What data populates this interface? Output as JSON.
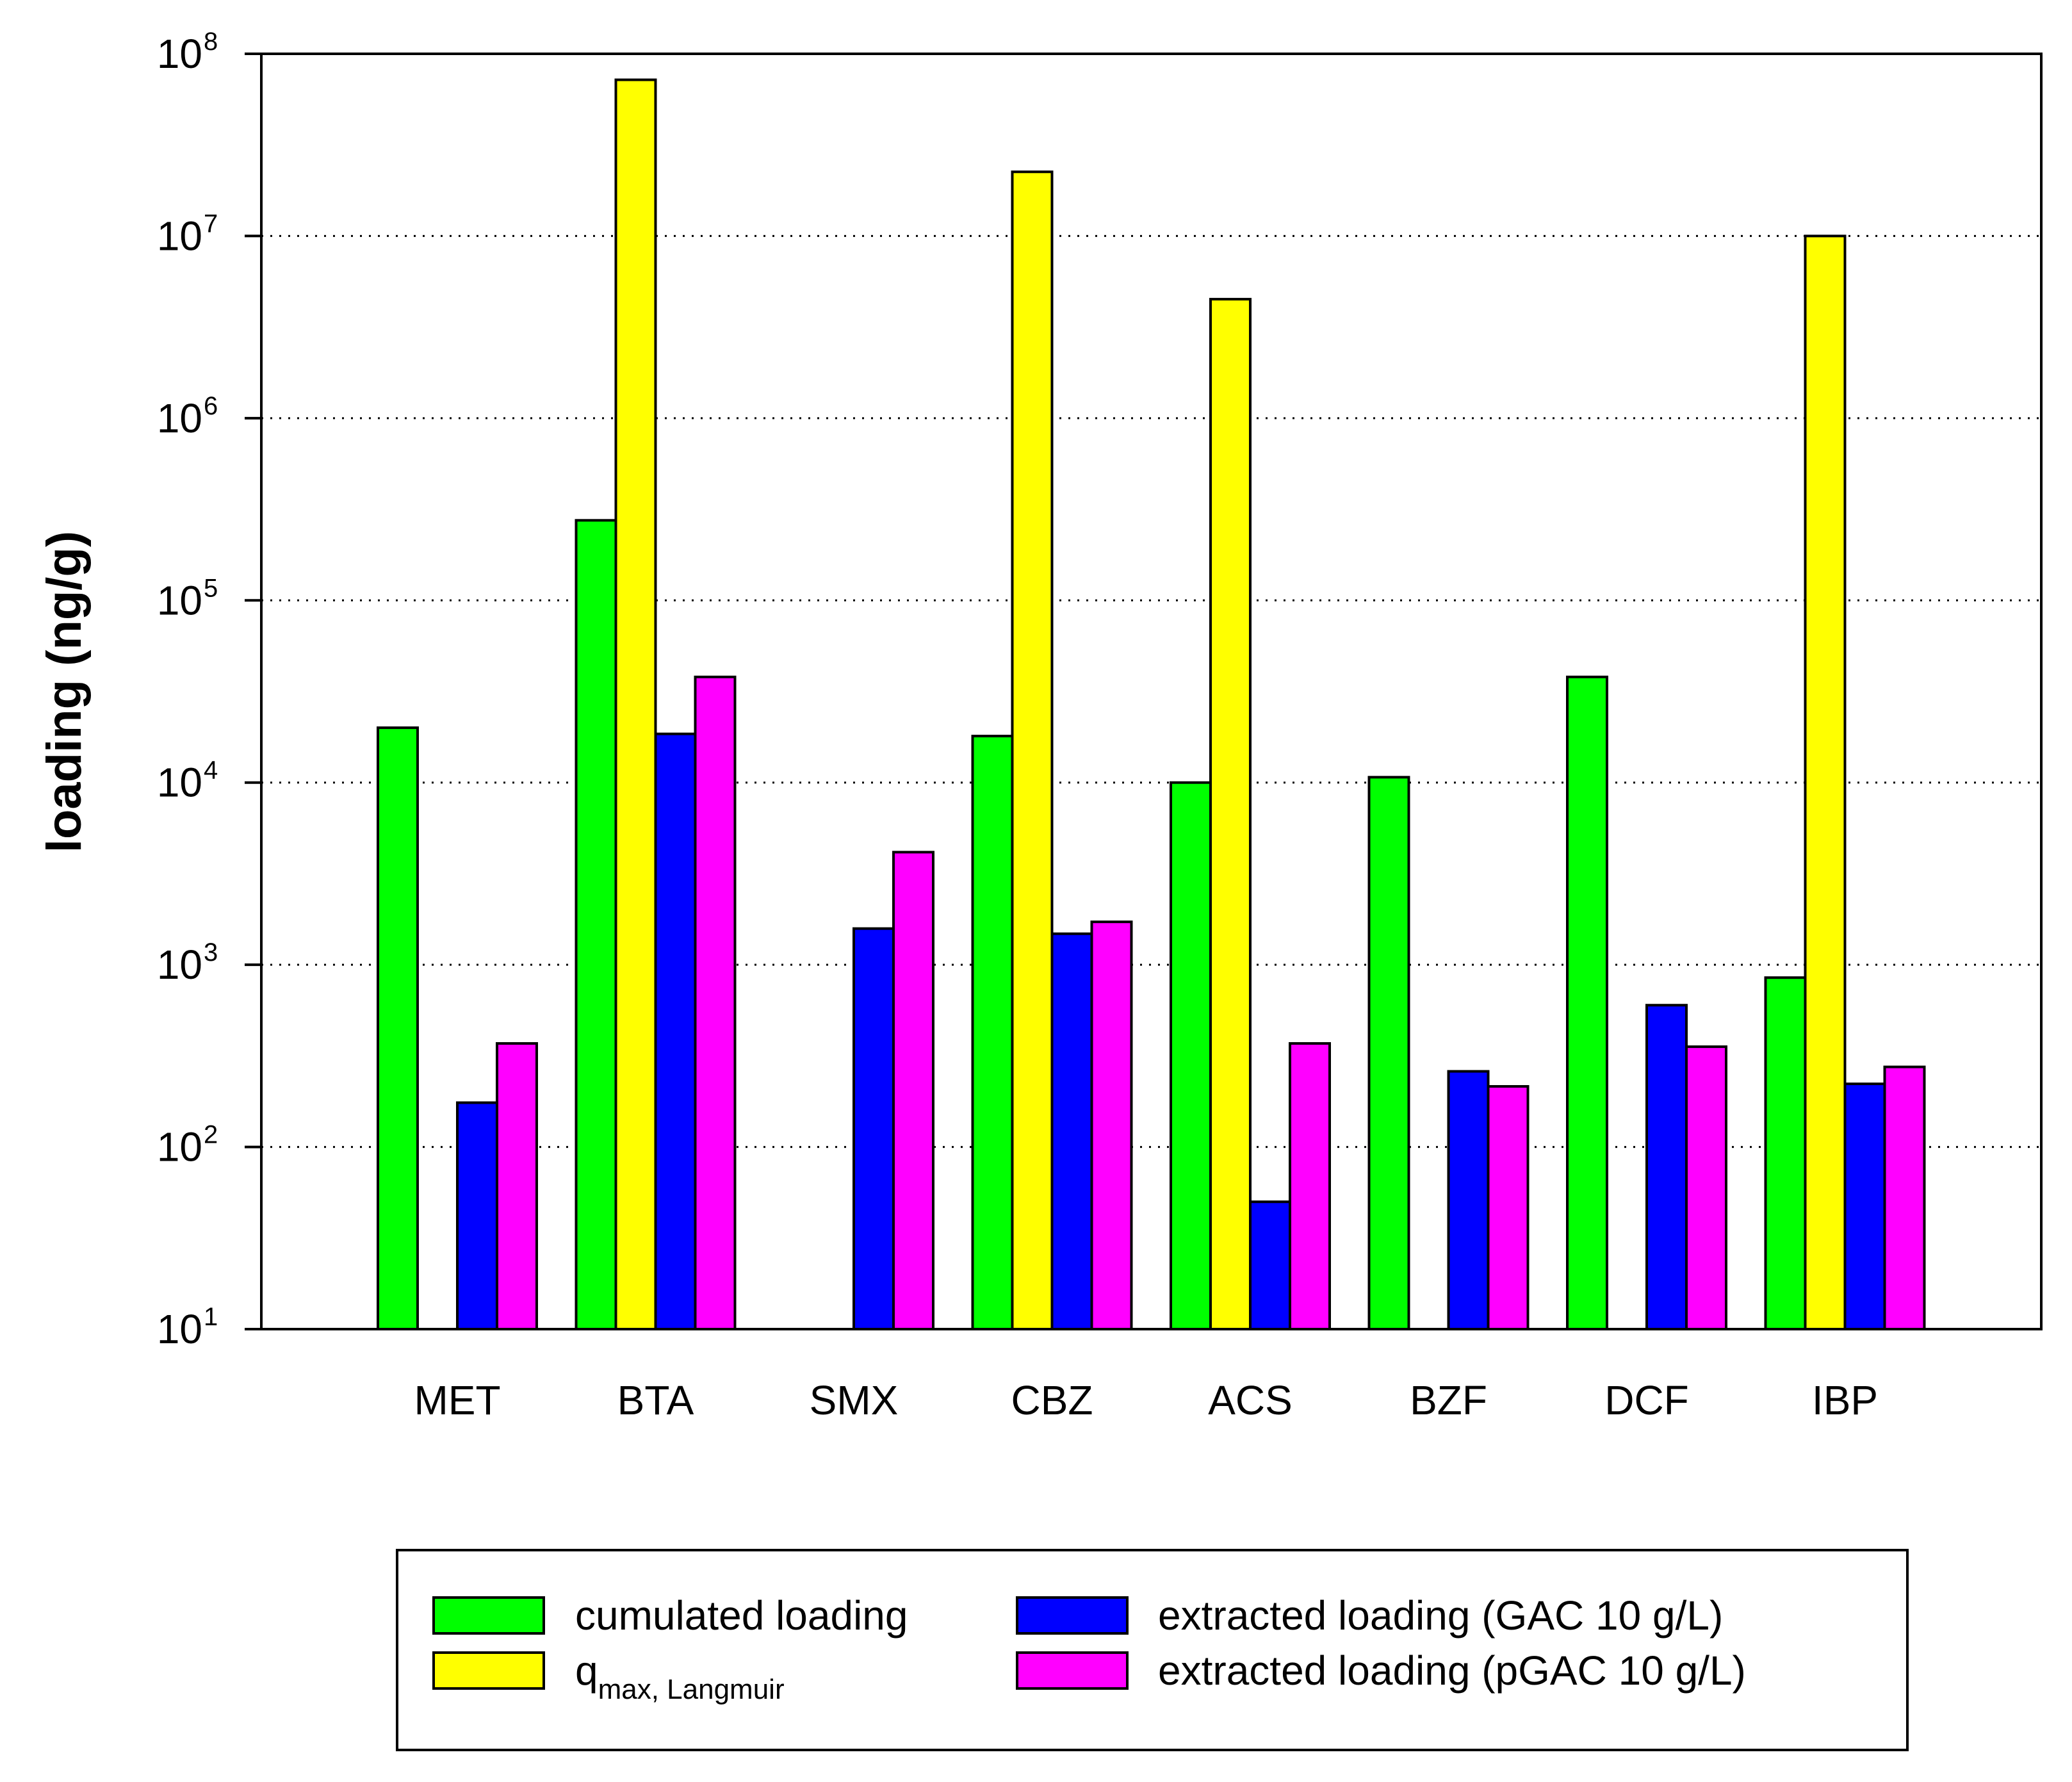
{
  "chart_data": {
    "type": "bar",
    "title": "",
    "xlabel": "",
    "ylabel": "loading (ng/g)",
    "yscale": "log",
    "ylim": [
      10,
      100000000
    ],
    "grid": "horizontal dotted",
    "legend_position": "bottom",
    "y_ticks": [
      {
        "base": "10",
        "exp": "1"
      },
      {
        "base": "10",
        "exp": "2"
      },
      {
        "base": "10",
        "exp": "3"
      },
      {
        "base": "10",
        "exp": "4"
      },
      {
        "base": "10",
        "exp": "5"
      },
      {
        "base": "10",
        "exp": "6"
      },
      {
        "base": "10",
        "exp": "7"
      },
      {
        "base": "10",
        "exp": "8"
      }
    ],
    "categories": [
      "MET",
      "BTA",
      "SMX",
      "CBZ",
      "ACS",
      "BZF",
      "DCF",
      "IBP"
    ],
    "series": [
      {
        "name": "cumulated loading",
        "legend_text": "cumulated loading",
        "color": "#00ff00",
        "values": [
          20000,
          275000,
          null,
          18000,
          10000,
          10700,
          38000,
          850
        ]
      },
      {
        "name": "q max, Langmuir",
        "legend_main": "q",
        "legend_sub": "max, Langmuir",
        "color": "#ffff00",
        "values": [
          null,
          72000000,
          null,
          22500000,
          4500000,
          null,
          null,
          10000000
        ]
      },
      {
        "name": "extracted loading (GAC 10 g/L)",
        "legend_text": "extracted loading (GAC 10 g/L)",
        "color": "#0000ff",
        "values": [
          175,
          18500,
          1580,
          1480,
          50,
          260,
          600,
          222
        ]
      },
      {
        "name": "extracted loading (pGAC 10 g/L)",
        "legend_text": "extracted loading (pGAC 10 g/L)",
        "color": "#ff00ff",
        "values": [
          370,
          38000,
          4150,
          1720,
          370,
          215,
          355,
          275
        ]
      }
    ]
  }
}
